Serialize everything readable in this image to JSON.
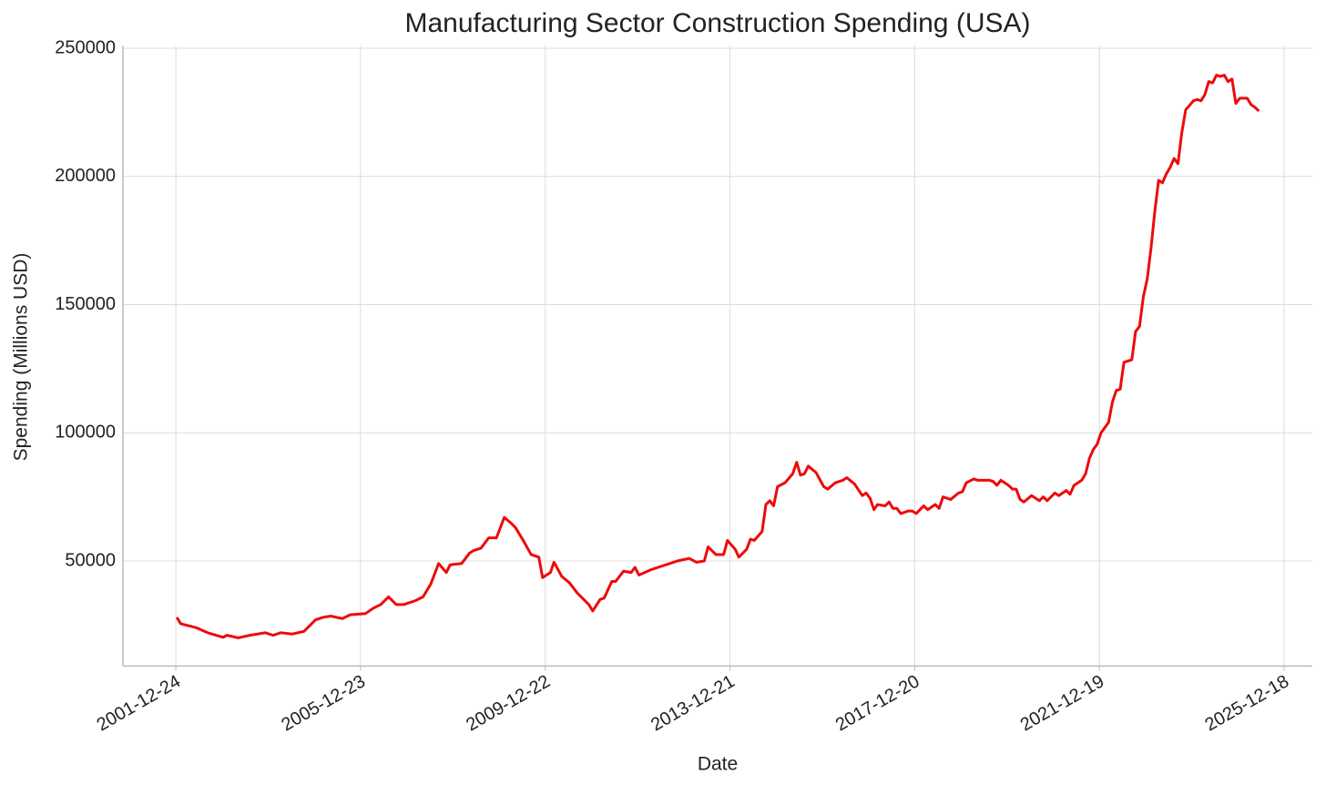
{
  "chart_data": {
    "type": "line",
    "title": "Manufacturing Sector Construction Spending (USA)",
    "xlabel": "Date",
    "ylabel": "Spending (Millions USD)",
    "color": "#ee0a0a",
    "grid": true,
    "xlim": [
      "2000-11-01",
      "2026-07-29"
    ],
    "xticks": [
      "2001-12-24",
      "2005-12-23",
      "2009-12-22",
      "2013-12-21",
      "2017-12-20",
      "2021-12-19",
      "2025-12-18"
    ],
    "ylim": [
      9000,
      251000
    ],
    "yticks": [
      50000,
      100000,
      150000,
      200000,
      250000
    ],
    "x": [
      "2002-01-01",
      "2002-02-01",
      "2002-06-01",
      "2002-09-01",
      "2003-01-01",
      "2003-02-01",
      "2003-05-01",
      "2003-08-01",
      "2003-12-01",
      "2004-02-01",
      "2004-04-01",
      "2004-07-01",
      "2004-10-01",
      "2005-01-01",
      "2005-03-01",
      "2005-05-01",
      "2005-08-01",
      "2005-10-01",
      "2006-02-01",
      "2006-04-01",
      "2006-06-01",
      "2006-08-01",
      "2006-10-01",
      "2006-12-01",
      "2007-03-01",
      "2007-05-01",
      "2007-07-01",
      "2007-09-01",
      "2007-11-01",
      "2007-12-01",
      "2008-03-01",
      "2008-05-01",
      "2008-06-01",
      "2008-08-01",
      "2008-10-01",
      "2008-12-01",
      "2009-02-01",
      "2009-04-01",
      "2009-05-01",
      "2009-07-01",
      "2009-09-01",
      "2009-11-01",
      "2009-12-01",
      "2010-02-01",
      "2010-03-01",
      "2010-05-01",
      "2010-07-01",
      "2010-09-01",
      "2010-12-01",
      "2011-01-01",
      "2011-03-01",
      "2011-04-01",
      "2011-06-01",
      "2011-07-01",
      "2011-09-01",
      "2011-11-01",
      "2011-12-01",
      "2012-01-01",
      "2012-04-01",
      "2012-07-01",
      "2012-09-01",
      "2012-11-01",
      "2013-02-01",
      "2013-04-01",
      "2013-06-01",
      "2013-07-01",
      "2013-09-01",
      "2013-11-01",
      "2013-12-01",
      "2014-02-01",
      "2014-03-01",
      "2014-05-01",
      "2014-06-01",
      "2014-07-01",
      "2014-09-01",
      "2014-10-01",
      "2014-11-01",
      "2014-12-01",
      "2015-01-01",
      "2015-03-01",
      "2015-05-01",
      "2015-06-01",
      "2015-07-01",
      "2015-08-01",
      "2015-09-01",
      "2015-11-01",
      "2016-01-01",
      "2016-02-01",
      "2016-04-01",
      "2016-06-01",
      "2016-07-01",
      "2016-09-01",
      "2016-11-01",
      "2016-12-01",
      "2017-01-01",
      "2017-02-01",
      "2017-03-01",
      "2017-05-01",
      "2017-06-01",
      "2017-07-01",
      "2017-08-01",
      "2017-09-01",
      "2017-11-01",
      "2017-12-01",
      "2018-01-01",
      "2018-03-01",
      "2018-04-01",
      "2018-06-01",
      "2018-07-01",
      "2018-08-01",
      "2018-10-01",
      "2018-12-01",
      "2019-01-01",
      "2019-02-01",
      "2019-04-01",
      "2019-05-01",
      "2019-08-01",
      "2019-09-01",
      "2019-10-01",
      "2019-11-01",
      "2020-01-01",
      "2020-02-01",
      "2020-03-01",
      "2020-04-01",
      "2020-05-01",
      "2020-07-01",
      "2020-09-01",
      "2020-10-01",
      "2020-11-01",
      "2021-01-01",
      "2021-02-01",
      "2021-04-01",
      "2021-05-01",
      "2021-06-01",
      "2021-08-01",
      "2021-09-01",
      "2021-10-01",
      "2021-11-01",
      "2021-12-01",
      "2022-01-01",
      "2022-03-01",
      "2022-04-01",
      "2022-05-01",
      "2022-06-01",
      "2022-07-01",
      "2022-09-01",
      "2022-10-01",
      "2022-11-01",
      "2022-12-01",
      "2023-01-01",
      "2023-02-01",
      "2023-03-01",
      "2023-04-01",
      "2023-05-01",
      "2023-06-01",
      "2023-07-01",
      "2023-08-01",
      "2023-09-01",
      "2023-10-01",
      "2023-11-01",
      "2024-01-01",
      "2024-02-01",
      "2024-03-01",
      "2024-04-01",
      "2024-05-01",
      "2024-06-01",
      "2024-07-01",
      "2024-08-01",
      "2024-09-01",
      "2024-10-01",
      "2024-11-01",
      "2024-12-01",
      "2025-01-01",
      "2025-03-01",
      "2025-04-01",
      "2025-05-01",
      "2025-06-01"
    ],
    "values": [
      28000,
      25500,
      24000,
      22000,
      20200,
      21000,
      20000,
      21000,
      22000,
      21000,
      22000,
      21500,
      22500,
      27000,
      28000,
      28500,
      27500,
      29000,
      29500,
      31500,
      33000,
      36000,
      33000,
      33000,
      34500,
      36000,
      41000,
      49000,
      45500,
      48500,
      49000,
      53000,
      54000,
      55000,
      59000,
      59000,
      67000,
      64500,
      63000,
      58000,
      52500,
      51500,
      43500,
      45500,
      49500,
      44000,
      41500,
      37500,
      33000,
      30500,
      35000,
      35500,
      42000,
      42000,
      46000,
      45500,
      47500,
      44500,
      46500,
      48000,
      49000,
      50000,
      51000,
      49500,
      50000,
      55500,
      52500,
      52500,
      58000,
      54500,
      51500,
      54500,
      58500,
      58000,
      61500,
      72000,
      73500,
      71500,
      79000,
      80500,
      84000,
      88500,
      83500,
      84000,
      87000,
      84500,
      79000,
      78000,
      80500,
      81500,
      82500,
      80000,
      75500,
      76500,
      74500,
      70000,
      72000,
      71500,
      73000,
      70500,
      70500,
      68500,
      69500,
      69500,
      68500,
      71500,
      70000,
      72000,
      70500,
      75000,
      74000,
      76500,
      77000,
      80500,
      82000,
      81500,
      81500,
      81000,
      79500,
      81500,
      79500,
      78000,
      78000,
      74000,
      73000,
      75500,
      73500,
      75000,
      73500,
      76500,
      75500,
      77500,
      76000,
      79500,
      81500,
      84000,
      90000,
      93500,
      95500,
      100000,
      104000,
      112000,
      116500,
      117000,
      127500,
      128500,
      139500,
      141500,
      153000,
      160000,
      172500,
      186000,
      198500,
      197500,
      201000,
      203500,
      207000,
      205000,
      217000,
      226000,
      229500,
      230000,
      229500,
      232000,
      237000,
      236500,
      239500,
      239000,
      239500,
      237000,
      238000,
      228500,
      230500,
      230500,
      228000,
      227000,
      225500
    ]
  }
}
